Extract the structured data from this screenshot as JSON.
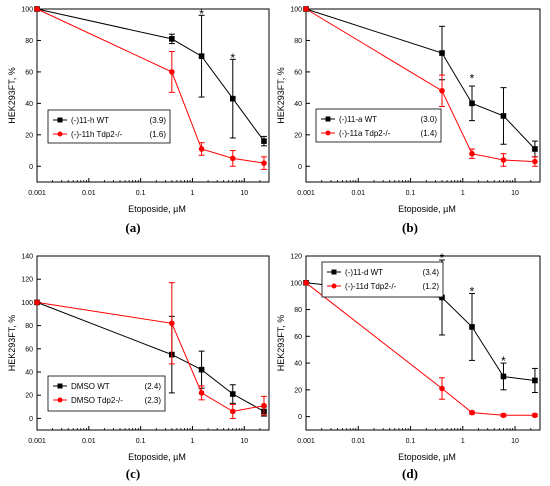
{
  "chart_data": [
    {
      "panel": "(a)",
      "type": "line",
      "xlabel": "Etoposide, µM",
      "ylabel": "HEK293FT, %",
      "xscale": "log",
      "xlim": [
        0.001,
        30
      ],
      "ylim": [
        -10,
        100
      ],
      "xticks": [
        0.001,
        0.01,
        0.1,
        1,
        10
      ],
      "xtick_labels": [
        "0.001",
        "0.01",
        "0.1",
        "1",
        "10"
      ],
      "yticks": [
        0,
        20,
        40,
        60,
        80,
        100
      ],
      "ytick_labels": [
        "0",
        "20",
        "40",
        "60",
        "80",
        "100"
      ],
      "legend_position": "middle-left",
      "series": [
        {
          "name": "(-)11-h  WT",
          "note": "(3.9)",
          "color": "#000000",
          "marker": "square",
          "x": [
            0.001,
            0.4,
            1.5,
            6,
            24
          ],
          "y": [
            100,
            81,
            70,
            43,
            16
          ],
          "err": [
            0,
            3,
            26,
            25,
            3
          ]
        },
        {
          "name": "(-)-11h Tdp2-/-",
          "note": "(1.6)",
          "color": "#ff0000",
          "marker": "circle",
          "x": [
            0.001,
            0.4,
            1.5,
            6,
            24
          ],
          "y": [
            100,
            60,
            11,
            5,
            2
          ],
          "err": [
            0,
            13,
            4,
            5,
            4
          ]
        }
      ],
      "annotations": [
        {
          "text": "*",
          "x": 1.5,
          "y": 98
        },
        {
          "text": "*",
          "x": 6,
          "y": 70
        }
      ]
    },
    {
      "panel": "(b)",
      "type": "line",
      "xlabel": "Etoposide, µM",
      "ylabel": "HEK293FT, %",
      "xscale": "log",
      "xlim": [
        0.001,
        30
      ],
      "ylim": [
        -10,
        100
      ],
      "xticks": [
        0.001,
        0.01,
        0.1,
        1,
        10
      ],
      "xtick_labels": [
        "0.001",
        "0.01",
        "0.1",
        "1",
        "10"
      ],
      "yticks": [
        0,
        20,
        40,
        60,
        80,
        100
      ],
      "ytick_labels": [
        "0",
        "20",
        "40",
        "60",
        "80",
        "100"
      ],
      "legend_position": "middle-left",
      "series": [
        {
          "name": "(-)11-a  WT",
          "note": "(3.0)",
          "color": "#000000",
          "marker": "square",
          "x": [
            0.001,
            0.4,
            1.5,
            6,
            24
          ],
          "y": [
            100,
            72,
            40,
            32,
            11
          ],
          "err": [
            0,
            17,
            11,
            18,
            5
          ]
        },
        {
          "name": "(-)-11a Tdp2-/-",
          "note": "(1.4)",
          "color": "#ff0000",
          "marker": "circle",
          "x": [
            0.001,
            0.4,
            1.5,
            6,
            24
          ],
          "y": [
            100,
            48,
            8,
            4,
            3
          ],
          "err": [
            0,
            10,
            3,
            4,
            3
          ]
        }
      ],
      "annotations": [
        {
          "text": "*",
          "x": 1.5,
          "y": 57
        }
      ]
    },
    {
      "panel": "(c)",
      "type": "line",
      "xlabel": "Etoposide, µM",
      "ylabel": "HEK293FT, %",
      "xscale": "log",
      "xlim": [
        0.001,
        30
      ],
      "ylim": [
        -10,
        140
      ],
      "xticks": [
        0.001,
        0.01,
        0.1,
        1,
        10
      ],
      "xtick_labels": [
        "0.001",
        "0.01",
        "0.1",
        "1",
        "10"
      ],
      "yticks": [
        0,
        20,
        40,
        60,
        80,
        100,
        120,
        140
      ],
      "ytick_labels": [
        "0",
        "20",
        "40",
        "60",
        "80",
        "100",
        "120",
        "140"
      ],
      "legend_position": "bottom-left",
      "series": [
        {
          "name": "DMSO  WT",
          "note": "(2.4)",
          "color": "#000000",
          "marker": "square",
          "x": [
            0.001,
            0.4,
            1.5,
            6,
            24
          ],
          "y": [
            100,
            55,
            42,
            21,
            6
          ],
          "err": [
            0,
            33,
            16,
            8,
            4
          ]
        },
        {
          "name": "DMSO Tdp2-/-",
          "note": "(2.3)",
          "color": "#ff0000",
          "marker": "circle",
          "x": [
            0.001,
            0.4,
            1.5,
            6,
            24
          ],
          "y": [
            100,
            82,
            22,
            6,
            11
          ],
          "err": [
            0,
            35,
            6,
            6,
            8
          ]
        }
      ],
      "annotations": []
    },
    {
      "panel": "(d)",
      "type": "line",
      "xlabel": "Etoposide, µM",
      "ylabel": "HEK293FT, %",
      "xscale": "log",
      "xlim": [
        0.001,
        30
      ],
      "ylim": [
        -10,
        120
      ],
      "xticks": [
        0.001,
        0.01,
        0.1,
        1,
        10
      ],
      "xtick_labels": [
        "0.001",
        "0.01",
        "0.1",
        "1",
        "10"
      ],
      "yticks": [
        0,
        20,
        40,
        60,
        80,
        100,
        120
      ],
      "ytick_labels": [
        "0",
        "20",
        "40",
        "60",
        "80",
        "100",
        "120"
      ],
      "legend_position": "top-left",
      "series": [
        {
          "name": "(-)11-d  WT",
          "note": "(3.4)",
          "color": "#000000",
          "marker": "square",
          "x": [
            0.001,
            0.4,
            1.5,
            6,
            24
          ],
          "y": [
            100,
            89,
            67,
            30,
            27
          ],
          "err": [
            0,
            28,
            25,
            10,
            9
          ]
        },
        {
          "name": "(-)-11d Tdp2-/-",
          "note": "(1.2)",
          "color": "#ff0000",
          "marker": "circle",
          "x": [
            0.001,
            0.4,
            1.5,
            6,
            24
          ],
          "y": [
            100,
            21,
            3,
            1,
            1
          ],
          "err": [
            0,
            8,
            1,
            1,
            1
          ]
        }
      ],
      "annotations": [
        {
          "text": "*",
          "x": 0.4,
          "y": 120
        },
        {
          "text": "*",
          "x": 1.5,
          "y": 95
        },
        {
          "text": "*",
          "x": 6,
          "y": 43
        }
      ]
    }
  ]
}
